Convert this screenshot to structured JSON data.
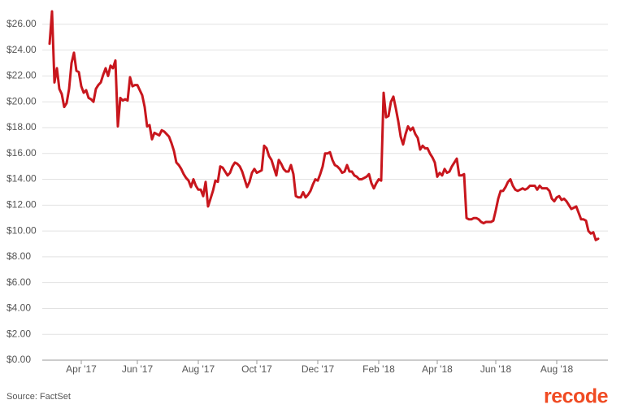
{
  "chart_data": {
    "type": "line",
    "categories": [
      null,
      null,
      null,
      null,
      null,
      null,
      null,
      null,
      null,
      null,
      null,
      null,
      null,
      "Apr '17",
      null,
      null,
      null,
      null,
      null,
      null,
      null,
      null,
      null,
      null,
      null,
      null,
      null,
      null,
      null,
      null,
      null,
      null,
      null,
      null,
      null,
      null,
      "Jun '17",
      null,
      null,
      null,
      null,
      null,
      null,
      null,
      null,
      null,
      null,
      null,
      null,
      null,
      null,
      null,
      null,
      null,
      null,
      null,
      null,
      null,
      null,
      null,
      null,
      "Aug '17",
      null,
      null,
      null,
      null,
      null,
      null,
      null,
      null,
      null,
      null,
      null,
      null,
      null,
      null,
      null,
      null,
      null,
      null,
      null,
      null,
      null,
      null,
      null,
      "Oct '17",
      null,
      null,
      null,
      null,
      null,
      null,
      null,
      null,
      null,
      null,
      null,
      null,
      null,
      null,
      null,
      null,
      null,
      null,
      null,
      null,
      null,
      null,
      null,
      null,
      "Dec '17",
      null,
      null,
      null,
      null,
      null,
      null,
      null,
      null,
      null,
      null,
      null,
      null,
      null,
      null,
      null,
      null,
      null,
      null,
      null,
      null,
      null,
      null,
      null,
      null,
      "Feb '18",
      null,
      null,
      null,
      null,
      null,
      null,
      null,
      null,
      null,
      null,
      null,
      null,
      null,
      null,
      null,
      null,
      null,
      null,
      null,
      null,
      null,
      null,
      null,
      "Apr '18",
      null,
      null,
      null,
      null,
      null,
      null,
      null,
      null,
      null,
      null,
      null,
      null,
      null,
      null,
      null,
      null,
      null,
      null,
      null,
      null,
      null,
      null,
      null,
      "Jun '18",
      null,
      null,
      null,
      null,
      null,
      null,
      null,
      null,
      null,
      null,
      null,
      null,
      null,
      null,
      null,
      null,
      null,
      null,
      null,
      null,
      null,
      null,
      null,
      null,
      "Aug '18",
      null,
      null,
      null,
      null,
      null,
      null,
      null,
      null,
      null,
      null,
      null,
      null,
      null,
      null,
      null,
      null,
      null
    ],
    "values": [
      24.5,
      27.0,
      21.5,
      22.6,
      21.0,
      20.6,
      19.6,
      19.9,
      21.0,
      23.0,
      23.8,
      22.4,
      22.3,
      21.2,
      20.7,
      20.9,
      20.3,
      20.2,
      20.0,
      21.0,
      21.3,
      21.5,
      22.1,
      22.6,
      22.0,
      22.8,
      22.6,
      23.2,
      18.1,
      20.3,
      20.1,
      20.2,
      20.1,
      21.9,
      21.2,
      21.3,
      21.3,
      20.9,
      20.5,
      19.6,
      18.1,
      18.2,
      17.1,
      17.6,
      17.5,
      17.4,
      17.8,
      17.7,
      17.5,
      17.3,
      16.8,
      16.2,
      15.3,
      15.1,
      14.8,
      14.4,
      14.1,
      13.9,
      13.4,
      14.0,
      13.5,
      13.2,
      13.2,
      12.7,
      13.8,
      11.9,
      12.5,
      13.1,
      13.9,
      13.8,
      15.0,
      14.9,
      14.6,
      14.3,
      14.5,
      15.0,
      15.3,
      15.2,
      15.0,
      14.6,
      14.0,
      13.4,
      13.8,
      14.5,
      14.8,
      14.5,
      14.6,
      14.7,
      16.6,
      16.4,
      15.8,
      15.5,
      14.9,
      14.3,
      15.5,
      15.2,
      14.8,
      14.6,
      14.6,
      15.1,
      14.4,
      12.7,
      12.6,
      12.6,
      13.0,
      12.6,
      12.8,
      13.1,
      13.6,
      14.0,
      13.9,
      14.4,
      15.0,
      16.0,
      16.0,
      16.1,
      15.5,
      15.1,
      15.0,
      14.8,
      14.5,
      14.6,
      15.1,
      14.6,
      14.6,
      14.3,
      14.2,
      14.0,
      14.0,
      14.1,
      14.2,
      14.4,
      13.7,
      13.3,
      13.7,
      14.0,
      13.9,
      20.7,
      18.8,
      18.9,
      20.0,
      20.4,
      19.5,
      18.5,
      17.3,
      16.7,
      17.5,
      18.1,
      17.8,
      18.0,
      17.5,
      17.2,
      16.3,
      16.6,
      16.4,
      16.4,
      16.0,
      15.7,
      15.3,
      14.2,
      14.5,
      14.3,
      14.8,
      14.5,
      14.6,
      15.0,
      15.3,
      15.6,
      14.3,
      14.3,
      14.4,
      11.0,
      10.9,
      10.9,
      11.0,
      11.0,
      10.9,
      10.7,
      10.6,
      10.7,
      10.7,
      10.7,
      10.8,
      11.6,
      12.5,
      13.1,
      13.1,
      13.4,
      13.8,
      14.0,
      13.5,
      13.2,
      13.1,
      13.2,
      13.3,
      13.2,
      13.3,
      13.5,
      13.5,
      13.5,
      13.2,
      13.5,
      13.3,
      13.3,
      13.3,
      13.1,
      12.5,
      12.3,
      12.6,
      12.7,
      12.4,
      12.5,
      12.3,
      12.0,
      11.7,
      11.8,
      11.9,
      11.4,
      10.9,
      10.9,
      10.8,
      10.0,
      9.8,
      9.9,
      9.3,
      9.4
    ],
    "color": "#c8161d",
    "ylim": [
      0,
      27
    ],
    "yticks": [
      {
        "value": 0,
        "label": "$0.00"
      },
      {
        "value": 2,
        "label": "$2.00"
      },
      {
        "value": 4,
        "label": "$4.00"
      },
      {
        "value": 6,
        "label": "$6.00"
      },
      {
        "value": 8,
        "label": "$8.00"
      },
      {
        "value": 10,
        "label": "$10.00"
      },
      {
        "value": 12,
        "label": "$12.00"
      },
      {
        "value": 14,
        "label": "$14.00"
      },
      {
        "value": 16,
        "label": "$16.00"
      },
      {
        "value": 18,
        "label": "$18.00"
      },
      {
        "value": 20,
        "label": "$20.00"
      },
      {
        "value": 22,
        "label": "$22.00"
      },
      {
        "value": 24,
        "label": "$24.00"
      },
      {
        "value": 26,
        "label": "$26.00"
      }
    ],
    "grid": true,
    "source": "Source: FactSet"
  },
  "brand": "recode"
}
